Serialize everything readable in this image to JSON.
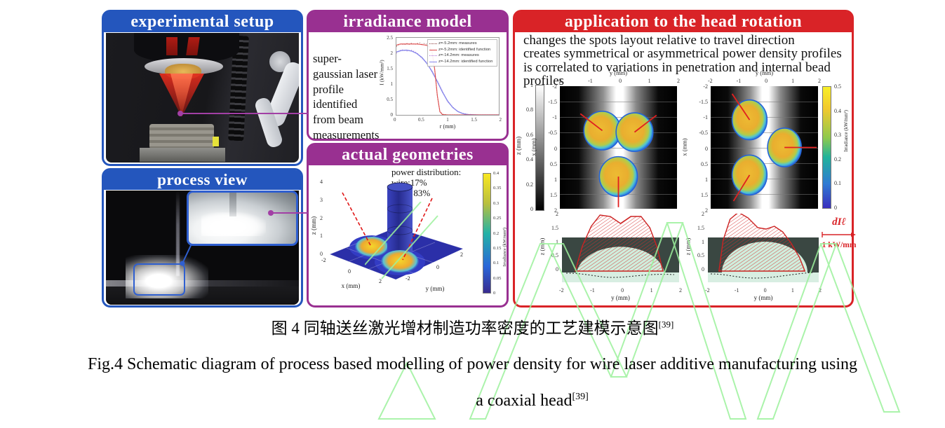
{
  "colors": {
    "blue": "#2456bd",
    "purple": "#993091",
    "red": "#d92327",
    "connector": "#a23fa5",
    "watermark": "#9cf19c"
  },
  "panels": {
    "experimental_setup": {
      "title": "experimental setup"
    },
    "process_view": {
      "title": "process view"
    },
    "irradiance_model": {
      "title": "irradiance model",
      "note": "super-gaussian laser profile identified from beam measurements"
    },
    "actual_geometries": {
      "title": "actual geometries"
    },
    "application": {
      "title": "application to the head rotation",
      "bullets": [
        "changes the spots layout relative to travel direction",
        "creates symmetrical or asymmetrical power density profiles",
        "is correlated to variations in penetration and internal bead profiles"
      ]
    }
  },
  "chart_data": [
    {
      "id": "irradiance_profile",
      "type": "line",
      "xlabel": "r (mm)",
      "ylabel": "I (kW/mm²)",
      "xlim": [
        0,
        2
      ],
      "ylim": [
        0,
        2.5
      ],
      "xticks": [
        "0",
        "0.5",
        "1",
        "1.5",
        "2"
      ],
      "yticks": [
        "0",
        "0.5",
        "1",
        "1.5",
        "2",
        "2.5"
      ],
      "legend_position": "top-right",
      "legend": [
        "z=-5.2mm: measures",
        "z=-5.2mm: identified function",
        "z=-14.2mm: measures",
        "z=-14.2mm: identified function"
      ],
      "series": [
        {
          "name": "z=-14.2mm: measures",
          "color": "#b070d8",
          "width": 1.2,
          "dash": "0.8 2.6",
          "x": [
            0,
            0.1,
            0.2,
            0.3,
            0.4,
            0.5,
            0.6,
            0.7,
            0.8,
            0.9,
            1.0,
            1.1,
            1.2,
            1.3,
            1.4,
            1.6,
            2.0
          ],
          "values": [
            2.0,
            2.12,
            2.07,
            2.1,
            2.02,
            1.83,
            1.69,
            1.37,
            1.1,
            0.77,
            0.42,
            0.26,
            0.1,
            0.05,
            0.02,
            0,
            0
          ]
        },
        {
          "name": "z=-14.2mm: identified function",
          "color": "#8585ea",
          "width": 1.4,
          "dash": "",
          "x": [
            0,
            0.1,
            0.2,
            0.3,
            0.4,
            0.5,
            0.6,
            0.7,
            0.8,
            0.9,
            1.0,
            1.1,
            1.2,
            1.3,
            1.4,
            1.6,
            2.0
          ],
          "values": [
            2.04,
            2.09,
            2.1,
            2.07,
            1.99,
            1.86,
            1.66,
            1.4,
            1.08,
            0.74,
            0.45,
            0.24,
            0.11,
            0.04,
            0.01,
            0,
            0
          ]
        },
        {
          "name": "z=-5.2mm: measures",
          "color": "#8b3a3a",
          "width": 1.2,
          "dash": "0.8 2.6",
          "x": [
            0,
            0.05,
            0.1,
            0.15,
            0.2,
            0.25,
            0.3,
            0.35,
            0.4,
            0.45,
            0.5,
            0.55,
            0.6,
            0.65,
            0.7,
            0.75,
            0.8,
            0.85,
            0.9,
            1.0,
            1.2,
            1.5,
            2.0
          ],
          "values": [
            2.22,
            2.28,
            2.31,
            2.27,
            2.32,
            2.29,
            2.33,
            2.28,
            2.31,
            2.34,
            2.29,
            2.32,
            2.28,
            2.24,
            2.05,
            1.45,
            0.6,
            0.12,
            0.02,
            0,
            0,
            0,
            0
          ]
        },
        {
          "name": "z=-5.2mm: identified function",
          "color": "#e04848",
          "width": 1.1,
          "dash": "",
          "x": [
            0,
            0.05,
            0.1,
            0.15,
            0.2,
            0.25,
            0.3,
            0.35,
            0.4,
            0.45,
            0.5,
            0.55,
            0.6,
            0.65,
            0.7,
            0.75,
            0.8,
            0.85,
            0.9,
            1.0,
            1.2,
            1.5,
            2.0
          ],
          "values": [
            2.26,
            2.29,
            2.3,
            2.3,
            2.3,
            2.3,
            2.3,
            2.3,
            2.3,
            2.29,
            2.28,
            2.27,
            2.25,
            2.2,
            2.0,
            1.45,
            0.62,
            0.1,
            0.01,
            0,
            0,
            0,
            0
          ]
        }
      ]
    },
    {
      "id": "actual_geometries_3d",
      "type": "surface3d",
      "zlabel": "z (mm)",
      "xlabel": "x (mm)",
      "ylabel": "y (mm)",
      "zticks": [
        "0",
        "1",
        "2",
        "3",
        "4"
      ],
      "xticks": [
        "-2",
        "0",
        "2"
      ],
      "yticks": [
        "2",
        "0",
        "-2"
      ],
      "annotation": [
        "power distribution:",
        "wire:17%",
        "bead: 83%"
      ],
      "power_distribution": {
        "wire": "17%",
        "bead": "83%"
      },
      "colorbar": {
        "label": "Irradiance (kW/mm²)",
        "range": [
          0,
          0.4
        ],
        "ticks": [
          "0",
          "0.05",
          "0.1",
          "0.15",
          "0.2",
          "0.25",
          "0.3",
          "0.35",
          "0.4"
        ]
      }
    },
    {
      "id": "z_colorbar",
      "type": "colorbar",
      "label": "z (mm)",
      "range": [
        0,
        1
      ],
      "ticks": [
        "0",
        "0.2",
        "0.4",
        "0.6",
        "0.8",
        "1"
      ]
    },
    {
      "id": "spot_layout_a",
      "type": "heatmap",
      "xlabel_top": "y (mm)",
      "ylabel_left": "x (mm)",
      "xlim": [
        -2,
        2
      ],
      "ylim": [
        -2,
        2
      ],
      "xticks": [
        "-2",
        "-1",
        "0",
        "1",
        "2"
      ],
      "yticks": [
        "-2",
        "-1.5",
        "-1",
        "-0.5",
        "0",
        "0.5",
        "1",
        "1.5",
        "2"
      ],
      "spots": [
        {
          "y_mm": -0.55,
          "x_mm": -0.55,
          "r": 0.63,
          "tip_y": -1.3,
          "tip_x": -1.1
        },
        {
          "y_mm": 0.55,
          "x_mm": -0.5,
          "r": 0.63,
          "tip_y": 1.3,
          "tip_x": -1.05
        },
        {
          "y_mm": 0.0,
          "x_mm": 0.95,
          "r": 0.65,
          "tip_y": 0.0,
          "tip_x": 1.95
        }
      ]
    },
    {
      "id": "spot_layout_b",
      "type": "heatmap",
      "xlabel_top": "y (mm)",
      "ylabel_left": "x (mm)",
      "xlim": [
        -2,
        2
      ],
      "ylim": [
        -2,
        2
      ],
      "xticks": [
        "-2",
        "-1",
        "0",
        "1",
        "2"
      ],
      "yticks": [
        "-2",
        "-1.5",
        "-1",
        "-0.5",
        "0",
        "0.5",
        "1",
        "1.5",
        "2"
      ],
      "spots": [
        {
          "y_mm": -0.55,
          "x_mm": -0.9,
          "r": 0.65,
          "tip_y": -1.2,
          "tip_x": -1.75
        },
        {
          "y_mm": -0.55,
          "x_mm": 0.9,
          "r": 0.65,
          "tip_y": -1.15,
          "tip_x": 1.75
        },
        {
          "y_mm": 0.75,
          "x_mm": 0.0,
          "r": 0.63,
          "tip_y": 1.95,
          "tip_x": 0.0
        }
      ]
    },
    {
      "id": "irradiance_colorbar",
      "type": "colorbar",
      "label": "Irradiance (kW/mm²)",
      "range": [
        0,
        0.5
      ],
      "ticks": [
        "0",
        "0.1",
        "0.2",
        "0.3",
        "0.4",
        "0.5"
      ]
    },
    {
      "id": "cross_section_a",
      "type": "area",
      "ylabel": "z (mm)",
      "xlabel": "y (mm)",
      "xlim": [
        -2,
        2
      ],
      "ylim": [
        0,
        2
      ],
      "yticks": [
        "0",
        "0.5",
        "1",
        "1.5",
        "2"
      ],
      "xticks": [
        "-2",
        "-1",
        "0",
        "1",
        "2"
      ],
      "bead": {
        "width_mm": 3.0,
        "height_mm": 1.05
      },
      "profile": {
        "y": [
          -1.55,
          -1.3,
          -1.0,
          -0.7,
          -0.35,
          0,
          0.35,
          0.7,
          1.0,
          1.25,
          1.45
        ],
        "dI": [
          0,
          0.9,
          1.6,
          2.0,
          1.95,
          1.7,
          1.95,
          1.95,
          1.55,
          0.85,
          0
        ]
      }
    },
    {
      "id": "cross_section_b",
      "type": "area",
      "ylabel": "z (mm)",
      "xlabel": "y (mm)",
      "xlim": [
        -2,
        2
      ],
      "ylim": [
        0,
        2
      ],
      "yticks": [
        "0",
        "0.5",
        "1",
        "1.5",
        "2"
      ],
      "xticks": [
        "-2",
        "-1",
        "0",
        "1",
        "2"
      ],
      "bead": {
        "width_mm": 3.1,
        "height_mm": 1.1
      },
      "profile": {
        "y": [
          -1.6,
          -1.45,
          -1.2,
          -0.9,
          -0.55,
          -0.2,
          0.1,
          0.4,
          0.7,
          1.0,
          1.3,
          1.5
        ],
        "dI": [
          0,
          1.1,
          1.85,
          2.1,
          1.9,
          1.55,
          1.5,
          1.6,
          1.4,
          1.0,
          0.5,
          0
        ]
      }
    },
    {
      "id": "profile_scale",
      "type": "scale",
      "symbol": "dIℓ",
      "value": "1 kW/mm"
    }
  ],
  "caption": {
    "zh": "图 4 同轴送丝激光增材制造功率密度的工艺建模示意图",
    "zh_ref": "[39]",
    "en1": "Fig.4 Schematic diagram of process based modelling of power density for wire laser additive manufacturing using",
    "en2": "a coaxial head",
    "en_ref": "[39]"
  }
}
